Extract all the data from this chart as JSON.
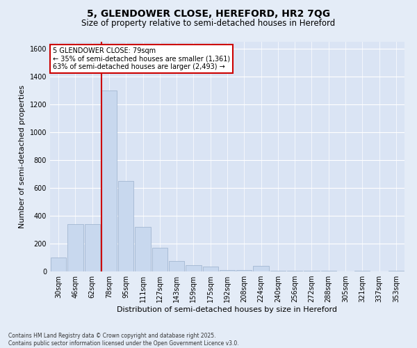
{
  "title_line1": "5, GLENDOWER CLOSE, HEREFORD, HR2 7QG",
  "title_line2": "Size of property relative to semi-detached houses in Hereford",
  "xlabel": "Distribution of semi-detached houses by size in Hereford",
  "ylabel": "Number of semi-detached properties",
  "categories": [
    "30sqm",
    "46sqm",
    "62sqm",
    "78sqm",
    "95sqm",
    "111sqm",
    "127sqm",
    "143sqm",
    "159sqm",
    "175sqm",
    "192sqm",
    "208sqm",
    "224sqm",
    "240sqm",
    "256sqm",
    "272sqm",
    "288sqm",
    "305sqm",
    "321sqm",
    "337sqm",
    "353sqm"
  ],
  "values": [
    100,
    340,
    340,
    1300,
    650,
    320,
    170,
    75,
    45,
    35,
    10,
    10,
    40,
    5,
    5,
    5,
    5,
    0,
    5,
    0,
    5
  ],
  "bar_color": "#c8d8ee",
  "bar_edge_color": "#9ab0cc",
  "vline_idx": 3,
  "vline_color": "#cc0000",
  "property_label": "5 GLENDOWER CLOSE: 79sqm",
  "smaller_pct": "← 35% of semi-detached houses are smaller (1,361)",
  "larger_pct": "63% of semi-detached houses are larger (2,493) →",
  "annotation_box_edgecolor": "#cc0000",
  "ylim_max": 1650,
  "yticks": [
    0,
    200,
    400,
    600,
    800,
    1000,
    1200,
    1400,
    1600
  ],
  "fig_bg_color": "#e4ecf7",
  "plot_bg_color": "#dae4f4",
  "grid_color": "#ffffff",
  "footer_line1": "Contains HM Land Registry data © Crown copyright and database right 2025.",
  "footer_line2": "Contains public sector information licensed under the Open Government Licence v3.0.",
  "title_fontsize": 10,
  "subtitle_fontsize": 8.5,
  "axis_label_fontsize": 8,
  "tick_fontsize": 7,
  "annot_fontsize": 7,
  "footer_fontsize": 5.5
}
